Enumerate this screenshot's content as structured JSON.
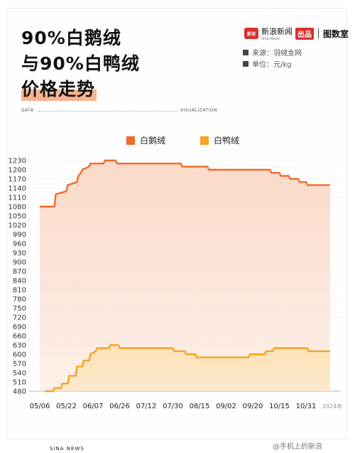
{
  "header": {
    "title_line1": "90%白鹅绒",
    "title_line2": "与90%白鸭绒",
    "title_line3": "价格走势"
  },
  "brand": {
    "logo_text": "新浪",
    "name": "新浪新闻",
    "sub": "Sina News",
    "badge": "出品",
    "partner": "图数室"
  },
  "meta": {
    "source": "来源：羽绒金网",
    "unit": "单位：元/kg"
  },
  "decor": {
    "data_label": "DATA",
    "viz_label": "VISUALIZATION",
    "footer": "SINA NEWS",
    "watermark": "@手机上的新浪"
  },
  "colors": {
    "goose": "#f26a27",
    "duck": "#f6a21e",
    "goose_fill": "#fbd8c6",
    "duck_fill": "#fde2b4"
  },
  "chart_data": {
    "type": "area",
    "title": "",
    "xlabel": "",
    "ylabel": "",
    "x_ticks": [
      "05/06",
      "05/22",
      "06/07",
      "06/26",
      "07/12",
      "07/30",
      "08/15",
      "09/02",
      "09/20",
      "10/15",
      "10/31"
    ],
    "x_note": "2024年",
    "ylim": [
      480,
      1230
    ],
    "y_ticks": [
      480,
      510,
      540,
      570,
      600,
      630,
      660,
      690,
      720,
      750,
      780,
      810,
      840,
      870,
      900,
      930,
      960,
      990,
      1020,
      1050,
      1080,
      1110,
      1140,
      1170,
      1200,
      1230
    ],
    "grid": true,
    "legend_position": "top",
    "series": [
      {
        "name": "白鹅绒",
        "color": "#f26a27",
        "points": [
          [
            0.0,
            1080
          ],
          [
            0.55,
            1080
          ],
          [
            0.6,
            1120
          ],
          [
            1.0,
            1130
          ],
          [
            1.05,
            1150
          ],
          [
            1.4,
            1160
          ],
          [
            1.45,
            1180
          ],
          [
            1.55,
            1190
          ],
          [
            1.6,
            1200
          ],
          [
            1.85,
            1210
          ],
          [
            1.9,
            1220
          ],
          [
            2.4,
            1220
          ],
          [
            2.45,
            1230
          ],
          [
            2.85,
            1230
          ],
          [
            2.9,
            1220
          ],
          [
            5.3,
            1220
          ],
          [
            5.35,
            1210
          ],
          [
            6.3,
            1210
          ],
          [
            6.35,
            1200
          ],
          [
            8.65,
            1200
          ],
          [
            8.7,
            1190
          ],
          [
            9.0,
            1190
          ],
          [
            9.05,
            1180
          ],
          [
            9.35,
            1180
          ],
          [
            9.4,
            1170
          ],
          [
            9.7,
            1170
          ],
          [
            9.75,
            1160
          ],
          [
            10.0,
            1160
          ],
          [
            10.05,
            1150
          ],
          [
            10.9,
            1150
          ]
        ]
      },
      {
        "name": "白鸭绒",
        "color": "#f6a21e",
        "points": [
          [
            0.2,
            480
          ],
          [
            0.5,
            480
          ],
          [
            0.55,
            490
          ],
          [
            0.8,
            490
          ],
          [
            0.85,
            505
          ],
          [
            1.05,
            505
          ],
          [
            1.1,
            530
          ],
          [
            1.35,
            530
          ],
          [
            1.4,
            560
          ],
          [
            1.6,
            560
          ],
          [
            1.65,
            580
          ],
          [
            1.85,
            580
          ],
          [
            1.9,
            600
          ],
          [
            2.1,
            610
          ],
          [
            2.15,
            620
          ],
          [
            2.6,
            620
          ],
          [
            2.65,
            630
          ],
          [
            2.95,
            630
          ],
          [
            3.0,
            620
          ],
          [
            5.0,
            620
          ],
          [
            5.05,
            610
          ],
          [
            5.45,
            610
          ],
          [
            5.5,
            600
          ],
          [
            5.85,
            600
          ],
          [
            5.9,
            590
          ],
          [
            7.85,
            590
          ],
          [
            7.9,
            600
          ],
          [
            8.45,
            600
          ],
          [
            8.5,
            610
          ],
          [
            8.75,
            610
          ],
          [
            8.8,
            620
          ],
          [
            10.05,
            620
          ],
          [
            10.1,
            610
          ],
          [
            10.9,
            610
          ]
        ]
      }
    ]
  }
}
